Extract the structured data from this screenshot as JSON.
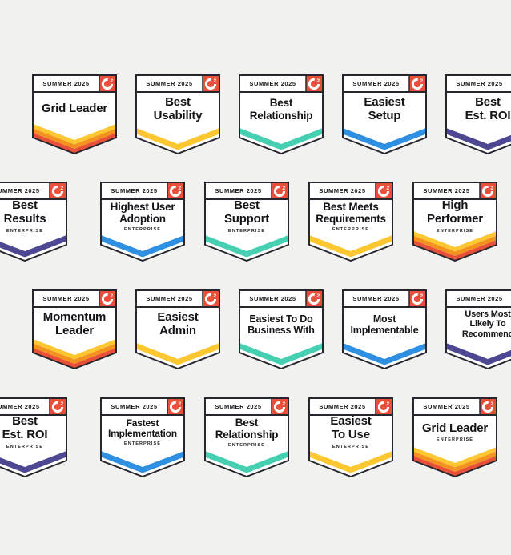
{
  "page": {
    "background": "#f1f1f0"
  },
  "season_label": "SUMMER 2025",
  "logo": {
    "label": "G2",
    "color": "#ea4f3b",
    "superscript": "2"
  },
  "colors": {
    "outline": "#26262e",
    "yellow": "#fcc731",
    "orange": "#f3921e",
    "red": "#e8503a",
    "teal": "#46cfb0",
    "blue": "#2f8fe0",
    "purple": "#4e4791"
  },
  "badges": [
    {
      "title": "Grid Leader",
      "tier": null,
      "stripe": "leader",
      "row": 1,
      "col": 1
    },
    {
      "title": "Best\nUsability",
      "tier": null,
      "stripe": "yellow",
      "row": 1,
      "col": 2
    },
    {
      "title": "Best\nRelationship",
      "tier": null,
      "stripe": "teal",
      "row": 1,
      "col": 3
    },
    {
      "title": "Easiest\nSetup",
      "tier": null,
      "stripe": "blue",
      "row": 1,
      "col": 4
    },
    {
      "title": "Best\nEst. ROI",
      "tier": null,
      "stripe": "purple",
      "row": 1,
      "col": 5
    },
    {
      "title": "Best\nResults",
      "tier": "ENTERPRISE",
      "stripe": "purple",
      "row": 2,
      "col": 1
    },
    {
      "title": "Highest User\nAdoption",
      "tier": "ENTERPRISE",
      "stripe": "blue",
      "row": 2,
      "col": 2
    },
    {
      "title": "Best\nSupport",
      "tier": "ENTERPRISE",
      "stripe": "teal",
      "row": 2,
      "col": 3
    },
    {
      "title": "Best Meets\nRequirements",
      "tier": "ENTERPRISE",
      "stripe": "yellow",
      "row": 2,
      "col": 4
    },
    {
      "title": "High\nPerformer",
      "tier": "ENTERPRISE",
      "stripe": "leader",
      "row": 2,
      "col": 5
    },
    {
      "title": "Momentum\nLeader",
      "tier": null,
      "stripe": "leader",
      "row": 3,
      "col": 1
    },
    {
      "title": "Easiest\nAdmin",
      "tier": null,
      "stripe": "yellow",
      "row": 3,
      "col": 2
    },
    {
      "title": "Easiest To Do\nBusiness With",
      "tier": null,
      "stripe": "teal",
      "row": 3,
      "col": 3
    },
    {
      "title": "Most\nImplementable",
      "tier": null,
      "stripe": "blue",
      "row": 3,
      "col": 4
    },
    {
      "title": "Users Most\nLikely To\nRecommend",
      "tier": null,
      "stripe": "purple",
      "row": 3,
      "col": 5
    },
    {
      "title": "Best\nEst. ROI",
      "tier": "ENTERPRISE",
      "stripe": "purple",
      "row": 4,
      "col": 1
    },
    {
      "title": "Fastest\nImplementation",
      "tier": "ENTERPRISE",
      "stripe": "blue",
      "row": 4,
      "col": 2
    },
    {
      "title": "Best\nRelationship",
      "tier": "ENTERPRISE",
      "stripe": "teal",
      "row": 4,
      "col": 3
    },
    {
      "title": "Easiest\nTo Use",
      "tier": "ENTERPRISE",
      "stripe": "yellow",
      "row": 4,
      "col": 4
    },
    {
      "title": "Grid Leader",
      "tier": "ENTERPRISE",
      "stripe": "leader",
      "row": 4,
      "col": 5
    }
  ]
}
